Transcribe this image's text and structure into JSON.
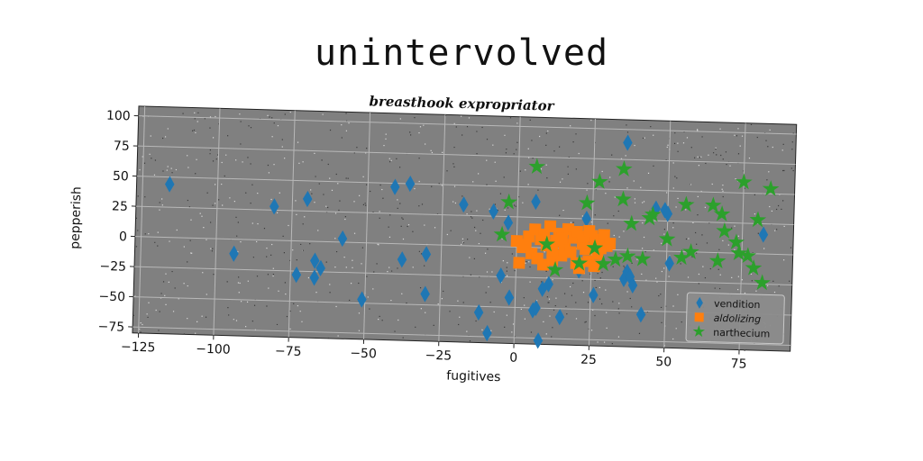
{
  "chart": {
    "title": "unintervolved",
    "subtitle": "breasthook expropriator"
  },
  "chart_data": {
    "type": "scatter",
    "title": "unintervolved",
    "subtitle": "breasthook expropriator",
    "xlabel": "fugitives",
    "ylabel": "pepperish",
    "xlim": [
      -127,
      92
    ],
    "ylim": [
      -80,
      108
    ],
    "xticks": [
      -125,
      -100,
      -75,
      -50,
      -25,
      0,
      25,
      50,
      75
    ],
    "yticks": [
      -75,
      -50,
      -25,
      0,
      25,
      50,
      75,
      100
    ],
    "grid": true,
    "legend_position": "lower-right",
    "background": "#808080",
    "series": [
      {
        "name": "vendition",
        "marker": "diamond",
        "color": "#1f77b4",
        "points": [
          [
            -116,
            44
          ],
          [
            -94,
            -12
          ],
          [
            -81,
            28
          ],
          [
            -70,
            35
          ],
          [
            -67,
            -16
          ],
          [
            -67,
            -30
          ],
          [
            -65,
            -22
          ],
          [
            -73,
            -28
          ],
          [
            -58,
            3
          ],
          [
            -51,
            -47
          ],
          [
            -41,
            47
          ],
          [
            -36,
            50
          ],
          [
            -38,
            -13
          ],
          [
            -30,
            -8
          ],
          [
            -30,
            -41
          ],
          [
            -18,
            34
          ],
          [
            -12,
            -55
          ],
          [
            -9,
            -72
          ],
          [
            -8,
            29
          ],
          [
            -5,
            -24
          ],
          [
            -3,
            20
          ],
          [
            -2,
            -42
          ],
          [
            6,
            38
          ],
          [
            6,
            -52
          ],
          [
            7,
            -50
          ],
          [
            8,
            -77
          ],
          [
            9,
            -34
          ],
          [
            11,
            -30
          ],
          [
            15,
            -57
          ],
          [
            21,
            -18
          ],
          [
            23,
            25
          ],
          [
            26,
            -38
          ],
          [
            36,
            89
          ],
          [
            36,
            -24
          ],
          [
            37,
            -18
          ],
          [
            38,
            -22
          ],
          [
            39,
            -29
          ],
          [
            42,
            -53
          ],
          [
            46,
            35
          ],
          [
            49,
            34
          ],
          [
            50,
            31
          ],
          [
            51,
            -10
          ],
          [
            82,
            16
          ]
        ]
      },
      {
        "name": "aldolizing",
        "marker": "square",
        "color": "#ff7f0e",
        "points": [
          [
            0,
            5
          ],
          [
            1,
            -13
          ],
          [
            2,
            0
          ],
          [
            4,
            9
          ],
          [
            5,
            -5
          ],
          [
            6,
            15
          ],
          [
            7,
            -9
          ],
          [
            8,
            7
          ],
          [
            9,
            -14
          ],
          [
            10,
            2
          ],
          [
            11,
            18
          ],
          [
            12,
            -10
          ],
          [
            13,
            6
          ],
          [
            14,
            12
          ],
          [
            15,
            -6
          ],
          [
            16,
            3
          ],
          [
            17,
            16
          ],
          [
            18,
            -3
          ],
          [
            19,
            9
          ],
          [
            20,
            14
          ],
          [
            21,
            -16
          ],
          [
            22,
            4
          ],
          [
            23,
            0
          ],
          [
            24,
            -10
          ],
          [
            25,
            11
          ],
          [
            26,
            6
          ],
          [
            27,
            -4
          ],
          [
            28,
            8
          ],
          [
            29,
            12
          ],
          [
            30,
            3
          ],
          [
            31,
            5
          ],
          [
            3,
            2
          ],
          [
            12,
            -2
          ],
          [
            20,
            -12
          ],
          [
            26,
            -14
          ],
          [
            9,
            11
          ],
          [
            15,
            8
          ],
          [
            22,
            10
          ],
          [
            28,
            1
          ],
          [
            24,
            15
          ]
        ]
      },
      {
        "name": "narthecium",
        "marker": "star",
        "color": "#2ca02c",
        "points": [
          [
            -5,
            10
          ],
          [
            -3,
            37
          ],
          [
            6,
            67
          ],
          [
            10,
            3
          ],
          [
            13,
            -18
          ],
          [
            21,
            -12
          ],
          [
            23,
            38
          ],
          [
            26,
            1
          ],
          [
            27,
            56
          ],
          [
            29,
            -12
          ],
          [
            33,
            -8
          ],
          [
            35,
            67
          ],
          [
            35,
            42
          ],
          [
            37,
            -5
          ],
          [
            38,
            22
          ],
          [
            42,
            -7
          ],
          [
            44,
            27
          ],
          [
            45,
            30
          ],
          [
            50,
            10
          ],
          [
            55,
            -5
          ],
          [
            56,
            39
          ],
          [
            58,
            0
          ],
          [
            65,
            39
          ],
          [
            67,
            -7
          ],
          [
            68,
            32
          ],
          [
            69,
            18
          ],
          [
            73,
            9
          ],
          [
            74,
            0
          ],
          [
            75,
            59
          ],
          [
            77,
            -2
          ],
          [
            79,
            -12
          ],
          [
            80,
            28
          ],
          [
            82,
            -24
          ],
          [
            84,
            54
          ]
        ]
      }
    ]
  }
}
